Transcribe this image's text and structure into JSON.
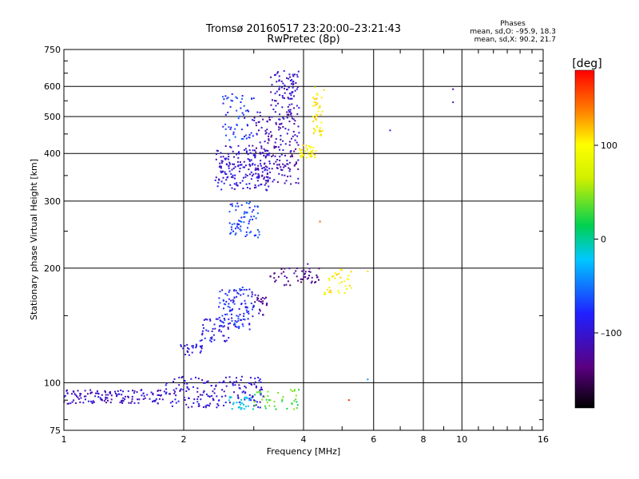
{
  "header": {
    "title_line1": "Tromsø 20160517 23:20:00–23:21:43",
    "title_line2": "RwPretec (8p)",
    "phases_label": "Phases",
    "phases_o": "mean, sd,O: –95.9, 18.3",
    "phases_x": "mean, sd,X:  90.2, 21.7"
  },
  "colorbar": {
    "label": "[deg]",
    "tick_labels": [
      "100",
      "0",
      "–100"
    ],
    "tick_values": [
      100,
      0,
      -100
    ],
    "range": [
      -180,
      180
    ],
    "colormap": "rainbow (black→purple→blue→cyan→green→yellow→orange→red)"
  },
  "chart_data": {
    "type": "scatter",
    "xlabel": "Frequency [MHz]",
    "ylabel": "Stationary phase Virtual Height [km]",
    "x_scale": "log",
    "y_scale": "log",
    "xlim": [
      1,
      16
    ],
    "ylim": [
      75,
      750
    ],
    "x_ticks": [
      1,
      2,
      4,
      6,
      8,
      10,
      16
    ],
    "x_tick_labels": [
      "1",
      "2",
      "4",
      "6",
      "8",
      "10",
      "16"
    ],
    "y_ticks": [
      75,
      100,
      200,
      300,
      400,
      500,
      600,
      750
    ],
    "y_tick_labels": [
      "75",
      "100",
      "200",
      "300",
      "400",
      "500",
      "600",
      "750"
    ],
    "grid": true,
    "color_encodes": "phase [deg]",
    "groups": [
      {
        "x": [
          1.0,
          1.8
        ],
        "y": [
          88,
          96
        ],
        "phase": -105,
        "count": 140
      },
      {
        "x": [
          1.8,
          3.2
        ],
        "y": [
          86,
          104
        ],
        "phase": -100,
        "count": 170
      },
      {
        "x": [
          2.6,
          3.0
        ],
        "y": [
          85,
          92
        ],
        "phase": -20,
        "count": 30
      },
      {
        "x": [
          3.0,
          3.9
        ],
        "y": [
          85,
          96
        ],
        "phase": 30,
        "count": 40
      },
      {
        "x": [
          1.95,
          2.25
        ],
        "y": [
          118,
          126
        ],
        "phase": -95,
        "count": 25
      },
      {
        "x": [
          2.2,
          2.6
        ],
        "y": [
          128,
          148
        ],
        "phase": -90,
        "count": 45
      },
      {
        "x": [
          2.45,
          3.0
        ],
        "y": [
          138,
          178
        ],
        "phase": -80,
        "count": 110
      },
      {
        "x": [
          3.0,
          3.3
        ],
        "y": [
          150,
          170
        ],
        "phase": -125,
        "count": 25
      },
      {
        "x": [
          3.3,
          4.4
        ],
        "y": [
          180,
          200
        ],
        "phase": -130,
        "count": 50
      },
      {
        "x": [
          4.5,
          5.3
        ],
        "y": [
          170,
          200
        ],
        "phase": 100,
        "count": 35
      },
      {
        "x": [
          2.6,
          3.1
        ],
        "y": [
          240,
          300
        ],
        "phase": -70,
        "count": 70
      },
      {
        "x": [
          2.4,
          3.3
        ],
        "y": [
          320,
          420
        ],
        "phase": -100,
        "count": 190
      },
      {
        "x": [
          2.5,
          3.0
        ],
        "y": [
          430,
          580
        ],
        "phase": -75,
        "count": 60
      },
      {
        "x": [
          3.0,
          3.9
        ],
        "y": [
          330,
          520
        ],
        "phase": -115,
        "count": 180
      },
      {
        "x": [
          3.3,
          3.9
        ],
        "y": [
          520,
          660
        ],
        "phase": -105,
        "count": 80
      },
      {
        "x": [
          3.9,
          4.3
        ],
        "y": [
          390,
          420
        ],
        "phase": 100,
        "count": 35
      },
      {
        "x": [
          4.2,
          4.5
        ],
        "y": [
          440,
          600
        ],
        "phase": 105,
        "count": 45
      }
    ],
    "points": [
      {
        "x": 9.5,
        "y": 590,
        "phase": -130
      },
      {
        "x": 9.5,
        "y": 545,
        "phase": -110
      },
      {
        "x": 6.6,
        "y": 460,
        "phase": -100
      },
      {
        "x": 4.4,
        "y": 265,
        "phase": 150
      },
      {
        "x": 5.2,
        "y": 90,
        "phase": 170
      },
      {
        "x": 5.8,
        "y": 102,
        "phase": -40
      },
      {
        "x": 4.1,
        "y": 205,
        "phase": -110
      },
      {
        "x": 5.8,
        "y": 196,
        "phase": 110
      }
    ]
  }
}
